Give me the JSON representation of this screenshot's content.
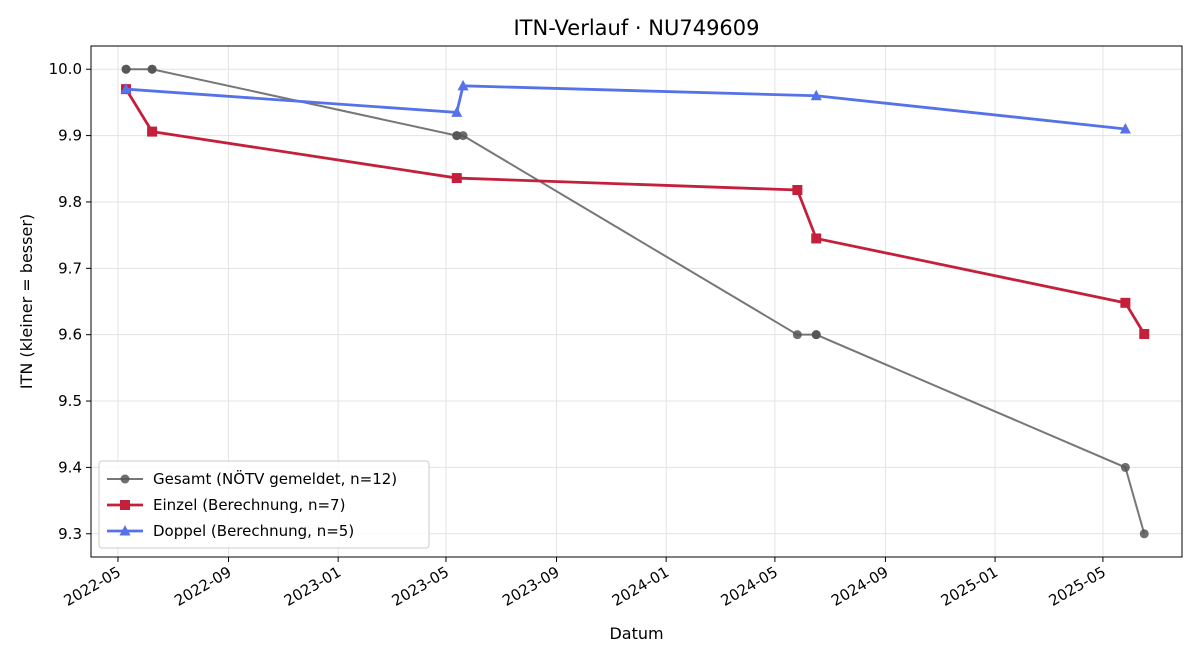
{
  "chart_data": {
    "type": "line",
    "title": "ITN-Verlauf · NU749609",
    "xlabel": "Datum",
    "ylabel": "ITN  (kleiner = besser)",
    "grid": true,
    "legend_position": "bottom-left",
    "xlim": [
      "2022-04-01",
      "2025-07-28"
    ],
    "ylim": [
      9.265,
      10.035
    ],
    "x_ticks": [
      "2022-05",
      "2022-09",
      "2023-01",
      "2023-05",
      "2023-09",
      "2024-01",
      "2024-05",
      "2024-09",
      "2025-01",
      "2025-05"
    ],
    "x_tick_dates": [
      "2022-05-01",
      "2022-09-01",
      "2023-01-01",
      "2023-05-01",
      "2023-09-01",
      "2024-01-01",
      "2024-05-01",
      "2024-09-01",
      "2025-01-01",
      "2025-05-01"
    ],
    "y_ticks": [
      9.3,
      9.4,
      9.5,
      9.6,
      9.7,
      9.8,
      9.9,
      10.0
    ],
    "y_tick_labels": [
      "9.3",
      "9.4",
      "9.5",
      "9.6",
      "9.7",
      "9.8",
      "9.9",
      "10.0"
    ],
    "series": [
      {
        "name": "Gesamt (NÖTV gemeldet, n=12)",
        "color": "#555555",
        "marker": "circle",
        "x": [
          "2022-05-10",
          "2022-05-10",
          "2022-06-08",
          "2022-06-08",
          "2023-05-13",
          "2023-05-13",
          "2023-05-20",
          "2024-05-26",
          "2024-06-16",
          "2024-06-16",
          "2025-05-26",
          "2025-06-16"
        ],
        "y": [
          10.0,
          10.0,
          10.0,
          10.0,
          9.9,
          9.9,
          9.9,
          9.6,
          9.6,
          9.6,
          9.4,
          9.3
        ]
      },
      {
        "name": "Einzel (Berechnung, n=7)",
        "color": "#c4203c",
        "marker": "square",
        "x": [
          "2022-05-10",
          "2022-06-08",
          "2023-05-13",
          "2024-05-26",
          "2024-06-16",
          "2025-05-26",
          "2025-06-16"
        ],
        "y": [
          9.97,
          9.906,
          9.836,
          9.818,
          9.745,
          9.648,
          9.601
        ]
      },
      {
        "name": "Doppel (Berechnung, n=5)",
        "color": "#5572e8",
        "marker": "triangle",
        "x": [
          "2022-05-10",
          "2023-05-13",
          "2023-05-20",
          "2024-06-16",
          "2025-05-26"
        ],
        "y": [
          9.97,
          9.935,
          9.975,
          9.96,
          9.91
        ]
      }
    ]
  }
}
